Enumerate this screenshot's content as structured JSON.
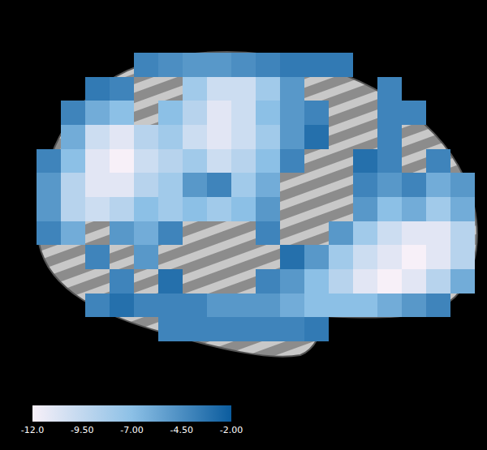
{
  "chart_data": {
    "type": "heatmap",
    "tick_labels": false,
    "colors": [
      "#f7f0f8",
      "#8cc0e6",
      "#0b5c9e"
    ],
    "cells": [
      [
        null,
        null,
        null,
        null,
        -4,
        -4.5,
        -5,
        -5,
        -4.5,
        -4,
        -3.5,
        -3.5,
        -3.5,
        null,
        null,
        null,
        null,
        null
      ],
      [
        null,
        null,
        -3.5,
        -4,
        null,
        null,
        -8,
        -10,
        -10,
        -8,
        -5,
        null,
        null,
        null,
        -4,
        null,
        null,
        null
      ],
      [
        null,
        -4,
        -6,
        -7,
        null,
        -7,
        -9,
        -11,
        -10,
        -7,
        -5,
        -4,
        null,
        null,
        -4,
        -4,
        null,
        null
      ],
      [
        null,
        -6,
        -10,
        -11,
        -9,
        -8,
        -10,
        -11,
        -10,
        -8,
        -5,
        -3,
        null,
        null,
        -4,
        null,
        null,
        null
      ],
      [
        -4,
        -7,
        -11,
        -12,
        -10,
        -9,
        -8,
        -10,
        -9,
        -7,
        -4,
        null,
        null,
        -3,
        -4,
        null,
        -4,
        null
      ],
      [
        -5,
        -9,
        -11,
        -11,
        -9,
        -8,
        -5,
        -4,
        -8,
        -6,
        null,
        null,
        null,
        -4,
        -5,
        -4,
        -6,
        -5
      ],
      [
        -5,
        -9,
        -10,
        -9,
        -7,
        -8,
        -7,
        -8,
        -7,
        -5,
        null,
        null,
        null,
        -5,
        -7,
        -6,
        -8,
        -6
      ],
      [
        -4,
        -6,
        null,
        -5,
        -6,
        -4,
        null,
        null,
        null,
        -4,
        null,
        null,
        -5,
        -8,
        -10,
        -11,
        -11,
        -9
      ],
      [
        null,
        null,
        -4,
        null,
        -5,
        null,
        null,
        null,
        null,
        null,
        -3,
        -5,
        -8,
        -10,
        -11,
        -12,
        -11,
        -9
      ],
      [
        null,
        null,
        null,
        -4,
        null,
        -3,
        null,
        null,
        null,
        -4,
        -5,
        -7,
        -9,
        -11,
        -12,
        -11,
        -9,
        -6
      ],
      [
        null,
        null,
        -4,
        -3,
        -4,
        -4,
        -4,
        -5,
        -5,
        -5,
        -6,
        -7,
        -7,
        -7,
        -6,
        -5,
        -4,
        null
      ],
      [
        null,
        null,
        null,
        null,
        null,
        -4,
        -4,
        -4,
        -4,
        -4,
        -4,
        -3.5,
        null,
        null,
        null,
        null,
        null,
        null
      ]
    ],
    "colorbar_range": [
      -12,
      -2
    ],
    "colorbar_ticks": [
      {
        "value": -12,
        "label": "-12.0"
      },
      {
        "value": -9.5,
        "label": "-9.50"
      },
      {
        "value": -7,
        "label": "-7.00"
      },
      {
        "value": -4.5,
        "label": "-4.50"
      },
      {
        "value": -2,
        "label": "-2.00"
      }
    ]
  }
}
